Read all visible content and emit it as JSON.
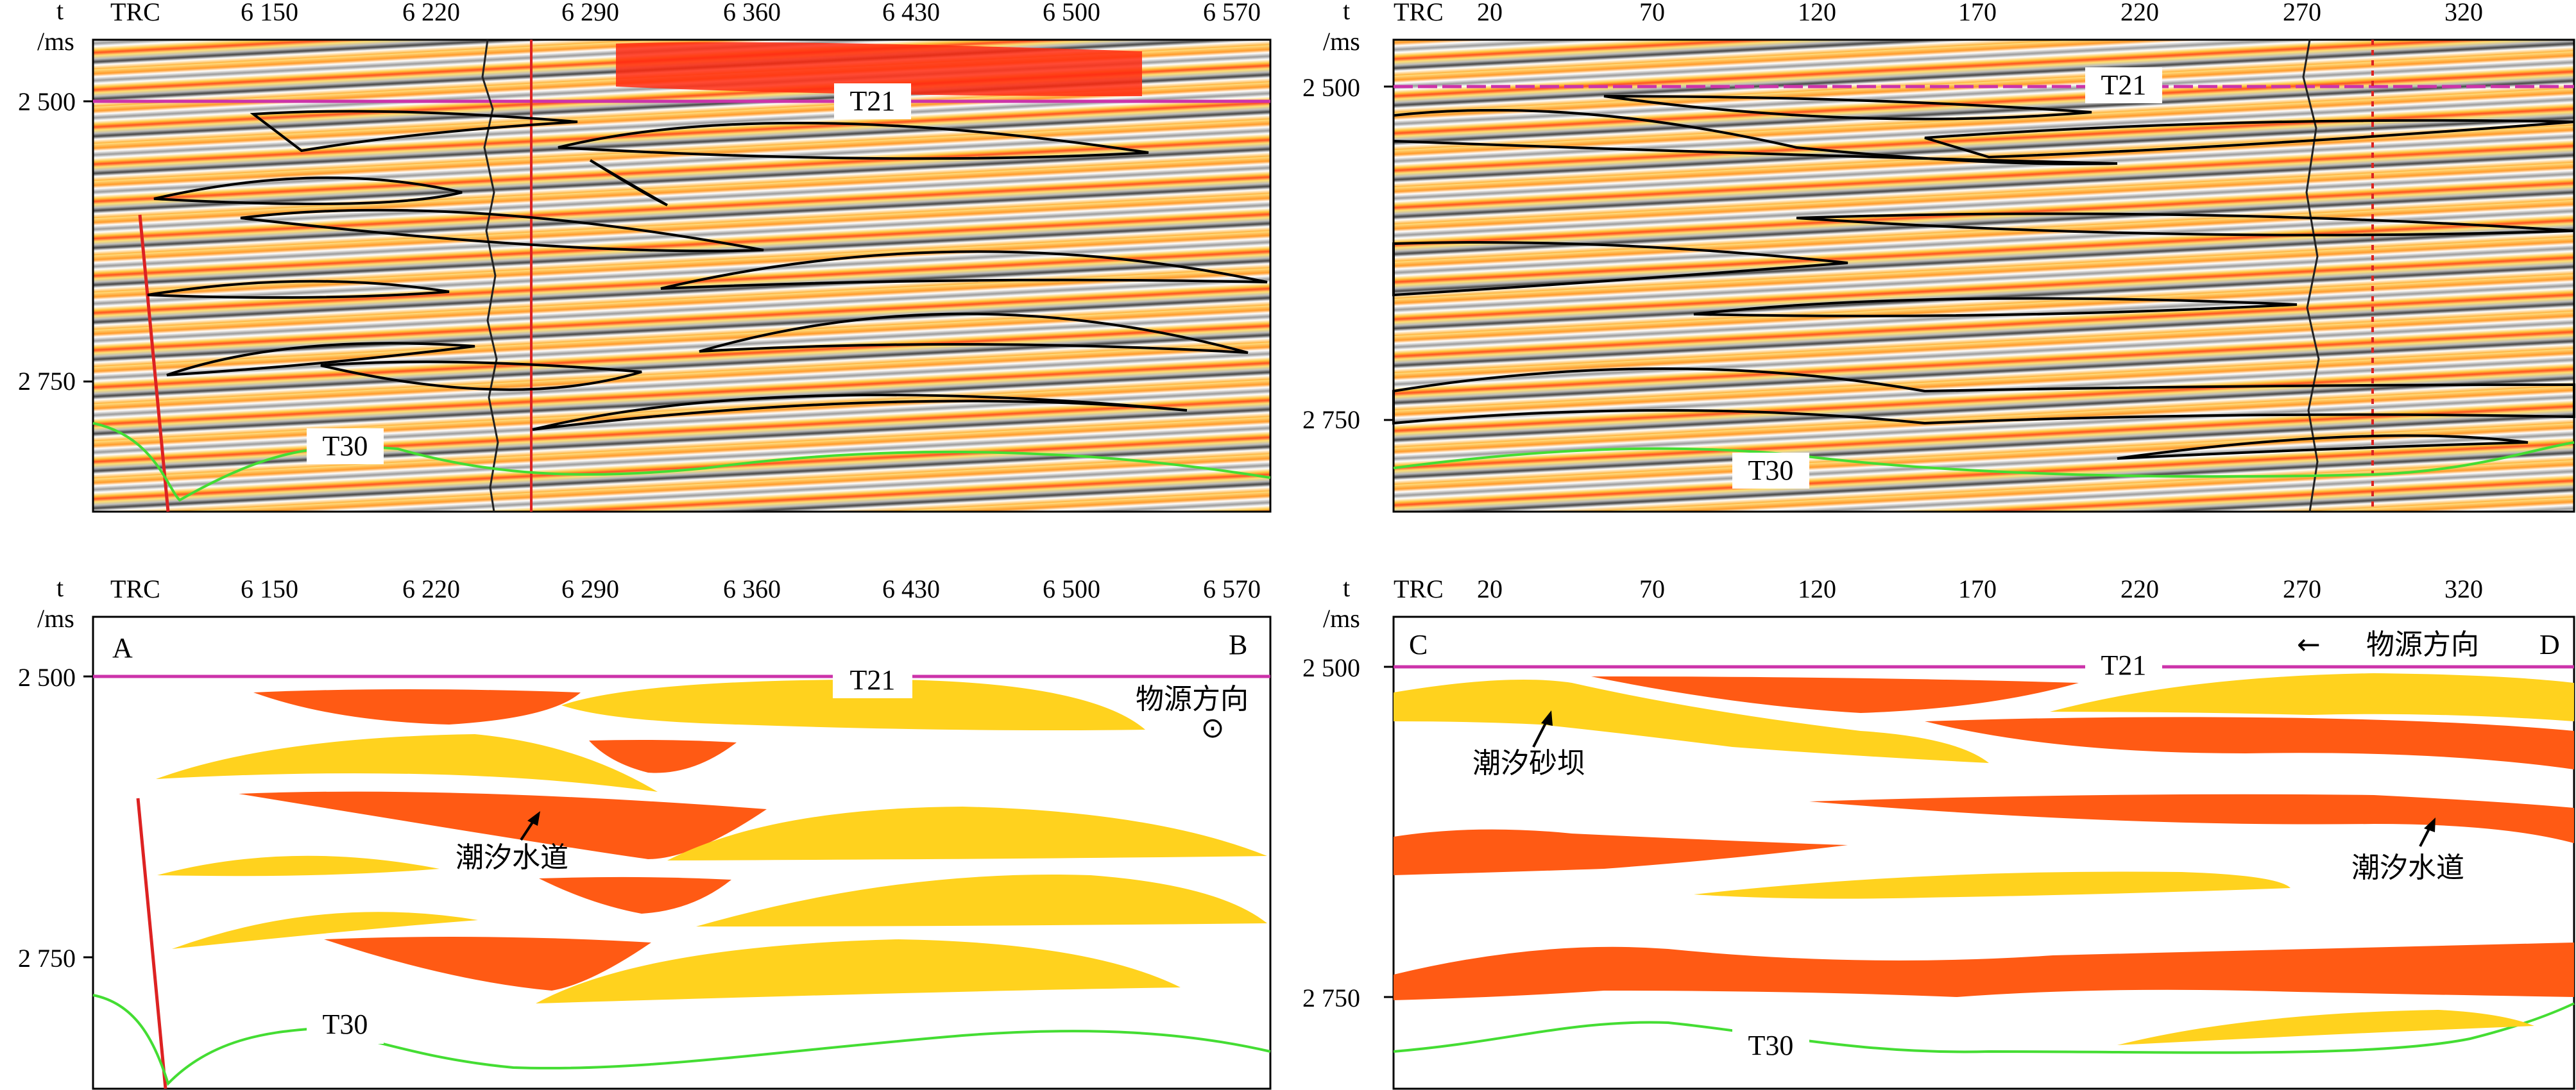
{
  "axis_unit": {
    "t": "t",
    "ms": "/ms",
    "trc": "TRC"
  },
  "panels": {
    "top_left": {
      "ticks": [
        "6 150",
        "6 220",
        "6 290",
        "6 360",
        "6 430",
        "6 500",
        "6 570"
      ],
      "t_ticks": [
        "2 500",
        "2 750"
      ]
    },
    "top_right": {
      "ticks": [
        "20",
        "70",
        "120",
        "170",
        "220",
        "270",
        "320"
      ],
      "t_ticks": [
        "2 500",
        "2 750"
      ]
    },
    "bottom_left": {
      "ticks": [
        "6 150",
        "6 220",
        "6 290",
        "6 360",
        "6 430",
        "6 500",
        "6 570"
      ],
      "t_ticks": [
        "2 500",
        "2 750"
      ],
      "corner_a": "A",
      "corner_b": "B"
    },
    "bottom_right": {
      "ticks": [
        "20",
        "70",
        "120",
        "170",
        "220",
        "270",
        "320"
      ],
      "t_ticks": [
        "2 500",
        "2 750"
      ],
      "corner_c": "C",
      "corner_d": "D"
    }
  },
  "horizons": {
    "upper": "T21",
    "lower": "T30"
  },
  "annotations": {
    "source_direction": "物源方向",
    "tidal_channel": "潮汐水道",
    "tidal_sand_bar": "潮汐砂坝",
    "out_of_plane_symbol": "⊙",
    "left_arrow": "←"
  },
  "colors": {
    "channel_fill": "#ff5a14",
    "sandbar_fill": "#ffd21e",
    "horizon_t21": "#cc33aa",
    "horizon_t30": "#44dd33",
    "fault": "#dd2222"
  }
}
